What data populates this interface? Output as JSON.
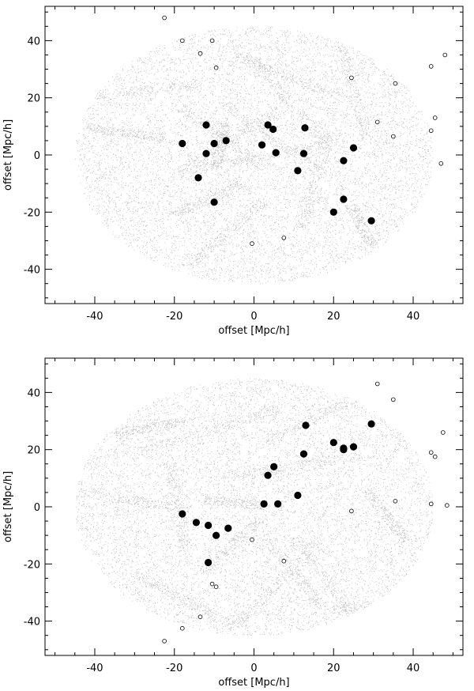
{
  "chart_data": [
    {
      "type": "scatter",
      "xlabel": "offset [Mpc/h]",
      "ylabel": "offset [Mpc/h]",
      "xlim": [
        -52.5,
        52.5
      ],
      "ylim": [
        -52,
        52
      ],
      "xticks": [
        -40,
        -20,
        0,
        20,
        40
      ],
      "yticks": [
        -40,
        -20,
        0,
        20,
        40
      ],
      "background_points": {
        "color": "#bdbdbd",
        "region": "ellipse",
        "center": [
          0,
          0
        ],
        "radii": [
          45,
          45
        ]
      },
      "series": [
        {
          "marker": "filled-circle",
          "color": "#000000",
          "points": [
            [
              -18,
              4
            ],
            [
              -12,
              10.5
            ],
            [
              -12,
              0.5
            ],
            [
              -10,
              4
            ],
            [
              -7,
              5
            ],
            [
              -14,
              -8
            ],
            [
              -10,
              -16.5
            ],
            [
              2,
              3.5
            ],
            [
              3.5,
              10.5
            ],
            [
              4.8,
              9
            ],
            [
              5.5,
              0.8
            ],
            [
              11,
              -5.5
            ],
            [
              12.5,
              0.5
            ],
            [
              12.8,
              9.5
            ],
            [
              22.5,
              -2
            ],
            [
              25,
              2.5
            ],
            [
              22.5,
              -15.5
            ],
            [
              20,
              -20
            ],
            [
              29.5,
              -23
            ]
          ]
        },
        {
          "marker": "open-circle",
          "color": "#000000",
          "points": [
            [
              -22.5,
              48
            ],
            [
              -18,
              40
            ],
            [
              -10.5,
              40
            ],
            [
              -13.5,
              35.5
            ],
            [
              -9.5,
              30.5
            ],
            [
              24.5,
              27
            ],
            [
              35.5,
              25
            ],
            [
              44.5,
              31
            ],
            [
              48,
              35
            ],
            [
              45.5,
              13
            ],
            [
              31,
              11.5
            ],
            [
              44.5,
              8.5
            ],
            [
              35,
              6.5
            ],
            [
              47,
              -3
            ],
            [
              7.5,
              -29
            ],
            [
              -0.5,
              -31
            ]
          ]
        }
      ]
    },
    {
      "type": "scatter",
      "xlabel": "offset [Mpc/h]",
      "ylabel": "offset [Mpc/h]",
      "xlim": [
        -52.5,
        52.5
      ],
      "ylim": [
        -52,
        52
      ],
      "xticks": [
        -40,
        -20,
        0,
        20,
        40
      ],
      "yticks": [
        -40,
        -20,
        0,
        20,
        40
      ],
      "background_points": {
        "color": "#bdbdbd",
        "region": "ellipse",
        "center": [
          0,
          0
        ],
        "radii": [
          45,
          45
        ]
      },
      "series": [
        {
          "marker": "filled-circle",
          "color": "#000000",
          "points": [
            [
              -18,
              -2.5
            ],
            [
              -14.5,
              -5.5
            ],
            [
              -11.5,
              -6.5
            ],
            [
              -9.5,
              -10
            ],
            [
              -6.5,
              -7.5
            ],
            [
              -11.5,
              -19.5
            ],
            [
              2.5,
              1
            ],
            [
              3.5,
              11
            ],
            [
              5,
              14
            ],
            [
              6,
              1
            ],
            [
              11,
              4
            ],
            [
              12.5,
              18.5
            ],
            [
              13,
              28.5
            ],
            [
              20,
              22.5
            ],
            [
              22.5,
              20
            ],
            [
              22.5,
              20.5
            ],
            [
              25,
              21
            ],
            [
              29.5,
              29
            ]
          ]
        },
        {
          "marker": "open-circle",
          "color": "#000000",
          "points": [
            [
              31,
              43
            ],
            [
              35,
              37.5
            ],
            [
              47.5,
              26
            ],
            [
              44.5,
              19
            ],
            [
              45.5,
              17.5
            ],
            [
              35.5,
              2
            ],
            [
              44.5,
              1
            ],
            [
              48.5,
              0.5
            ],
            [
              24.5,
              -1.5
            ],
            [
              -0.5,
              -11.5
            ],
            [
              7.5,
              -19
            ],
            [
              -10.5,
              -27
            ],
            [
              -9.5,
              -28
            ],
            [
              -13.5,
              -38.5
            ],
            [
              -18,
              -42.5
            ],
            [
              -22.5,
              -47
            ]
          ]
        }
      ]
    }
  ]
}
